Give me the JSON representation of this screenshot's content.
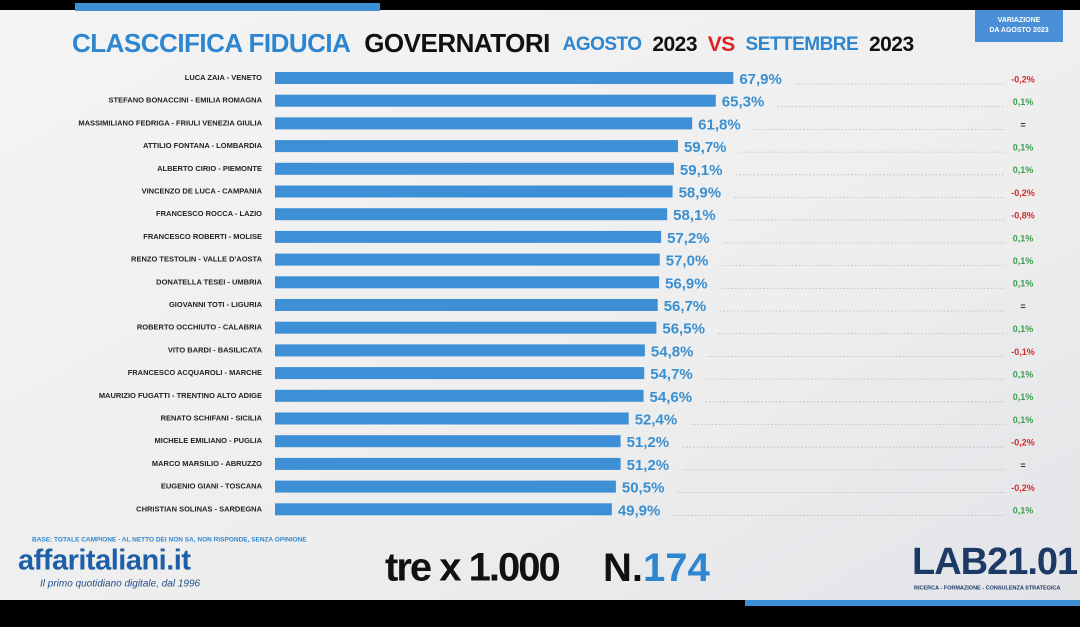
{
  "chart_data": {
    "type": "hbar",
    "title": [
      "CLASCCIFICA FIDUCIA",
      "GOVERNATORI",
      "AGOSTO",
      "2023",
      "VS",
      "SETTEMBRE",
      "2023"
    ],
    "change_header": [
      "VARIAZIONE",
      "DA AGOSTO 2023"
    ],
    "color": "#3d8fd6",
    "categories": [
      "LUCA ZAIA - VENETO",
      "STEFANO BONACCINI - EMILIA ROMAGNA",
      "MASSIMILIANO FEDRIGA - FRIULI VENEZIA GIULIA",
      "ATTILIO FONTANA - LOMBARDIA",
      "ALBERTO CIRIO - PIEMONTE",
      "VINCENZO DE LUCA - CAMPANIA",
      "FRANCESCO ROCCA - LAZIO",
      "FRANCESCO ROBERTI - MOLISE",
      "RENZO TESTOLIN - VALLE D'AOSTA",
      "DONATELLA TESEI - UMBRIA",
      "GIOVANNI TOTI - LIGURIA",
      "ROBERTO OCCHIUTO - CALABRIA",
      "VITO BARDI - BASILICATA",
      "FRANCESCO ACQUAROLI - MARCHE",
      "MAURIZIO FUGATTI - TRENTINO ALTO ADIGE",
      "RENATO SCHIFANI - SICILIA",
      "MICHELE EMILIANO - PUGLIA",
      "MARCO MARSILIO - ABRUZZO",
      "EUGENIO GIANI - TOSCANA",
      "CHRISTIAN SOLINAS - SARDEGNA"
    ],
    "values": [
      67.9,
      65.3,
      61.8,
      59.7,
      59.1,
      58.9,
      58.1,
      57.2,
      57.0,
      56.9,
      56.7,
      56.5,
      54.8,
      54.7,
      54.6,
      52.4,
      51.2,
      51.2,
      50.5,
      49.9
    ],
    "value_labels": [
      "67,9%",
      "65,3%",
      "61,8%",
      "59,7%",
      "59,1%",
      "58,9%",
      "58,1%",
      "57,2%",
      "57,0%",
      "56,9%",
      "56,7%",
      "56,5%",
      "54,8%",
      "54,7%",
      "54,6%",
      "52,4%",
      "51,2%",
      "51,2%",
      "50,5%",
      "49,9%"
    ],
    "changes": [
      "-0,2%",
      "0,1%",
      "=",
      "0,1%",
      "0,1%",
      "-0,2%",
      "-0,8%",
      "0,1%",
      "0,1%",
      "0,1%",
      "=",
      "0,1%",
      "-0,1%",
      "0,1%",
      "0,1%",
      "0,1%",
      "-0,2%",
      "=",
      "-0,2%",
      "0,1%"
    ]
  },
  "footer": {
    "base": "BASE: TOTALE CAMPIONE - AL NETTO DEI NON SA, NON RISPONDE, SENZA OPINIONE",
    "brand": "affaritaliani.it",
    "tagline": "Il primo quotidiano digitale, dal 1996",
    "series_logo": "tre x 1.000",
    "issue": [
      "N.",
      "174"
    ],
    "lab": "LAB21.01",
    "lab_tagline": "RICERCA - FORMAZIONE - CONSULENZA STRATEGICA"
  }
}
